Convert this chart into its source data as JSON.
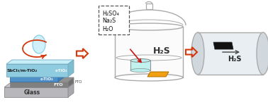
{
  "background_color": "#ffffff",
  "fig_width": 3.78,
  "fig_height": 1.52,
  "dpi": 100,
  "layer_labels": [
    "SbCl₃/m-TiO₂",
    "c-TiO₂",
    "FTO",
    "Glass"
  ],
  "chemicals_box": [
    "H₂SO₄",
    "Na₂S",
    "H₂O"
  ],
  "h2s_label": "H₂S",
  "tube_h2s_label": "H₂S",
  "arrow_color_hollow": "#d4380d",
  "arrow_color_red": "#cc1111",
  "outline_color": "#aaaaaa",
  "outline_dark": "#888888",
  "glass_color": "#c8c8cc",
  "fto_color": "#909090",
  "ctio2_color": "#6aaad5",
  "meso_color": "#b0dff0",
  "top_face_color": "#c8eef8",
  "droplet_color": "#d0f0fc",
  "beaker_fill": "#b8f0ee",
  "substrate_color": "#f0a010",
  "dark_substrate_color": "#111111",
  "tube_body_color": "#e8eef2",
  "tube_ellipse_color": "#d0d8de"
}
